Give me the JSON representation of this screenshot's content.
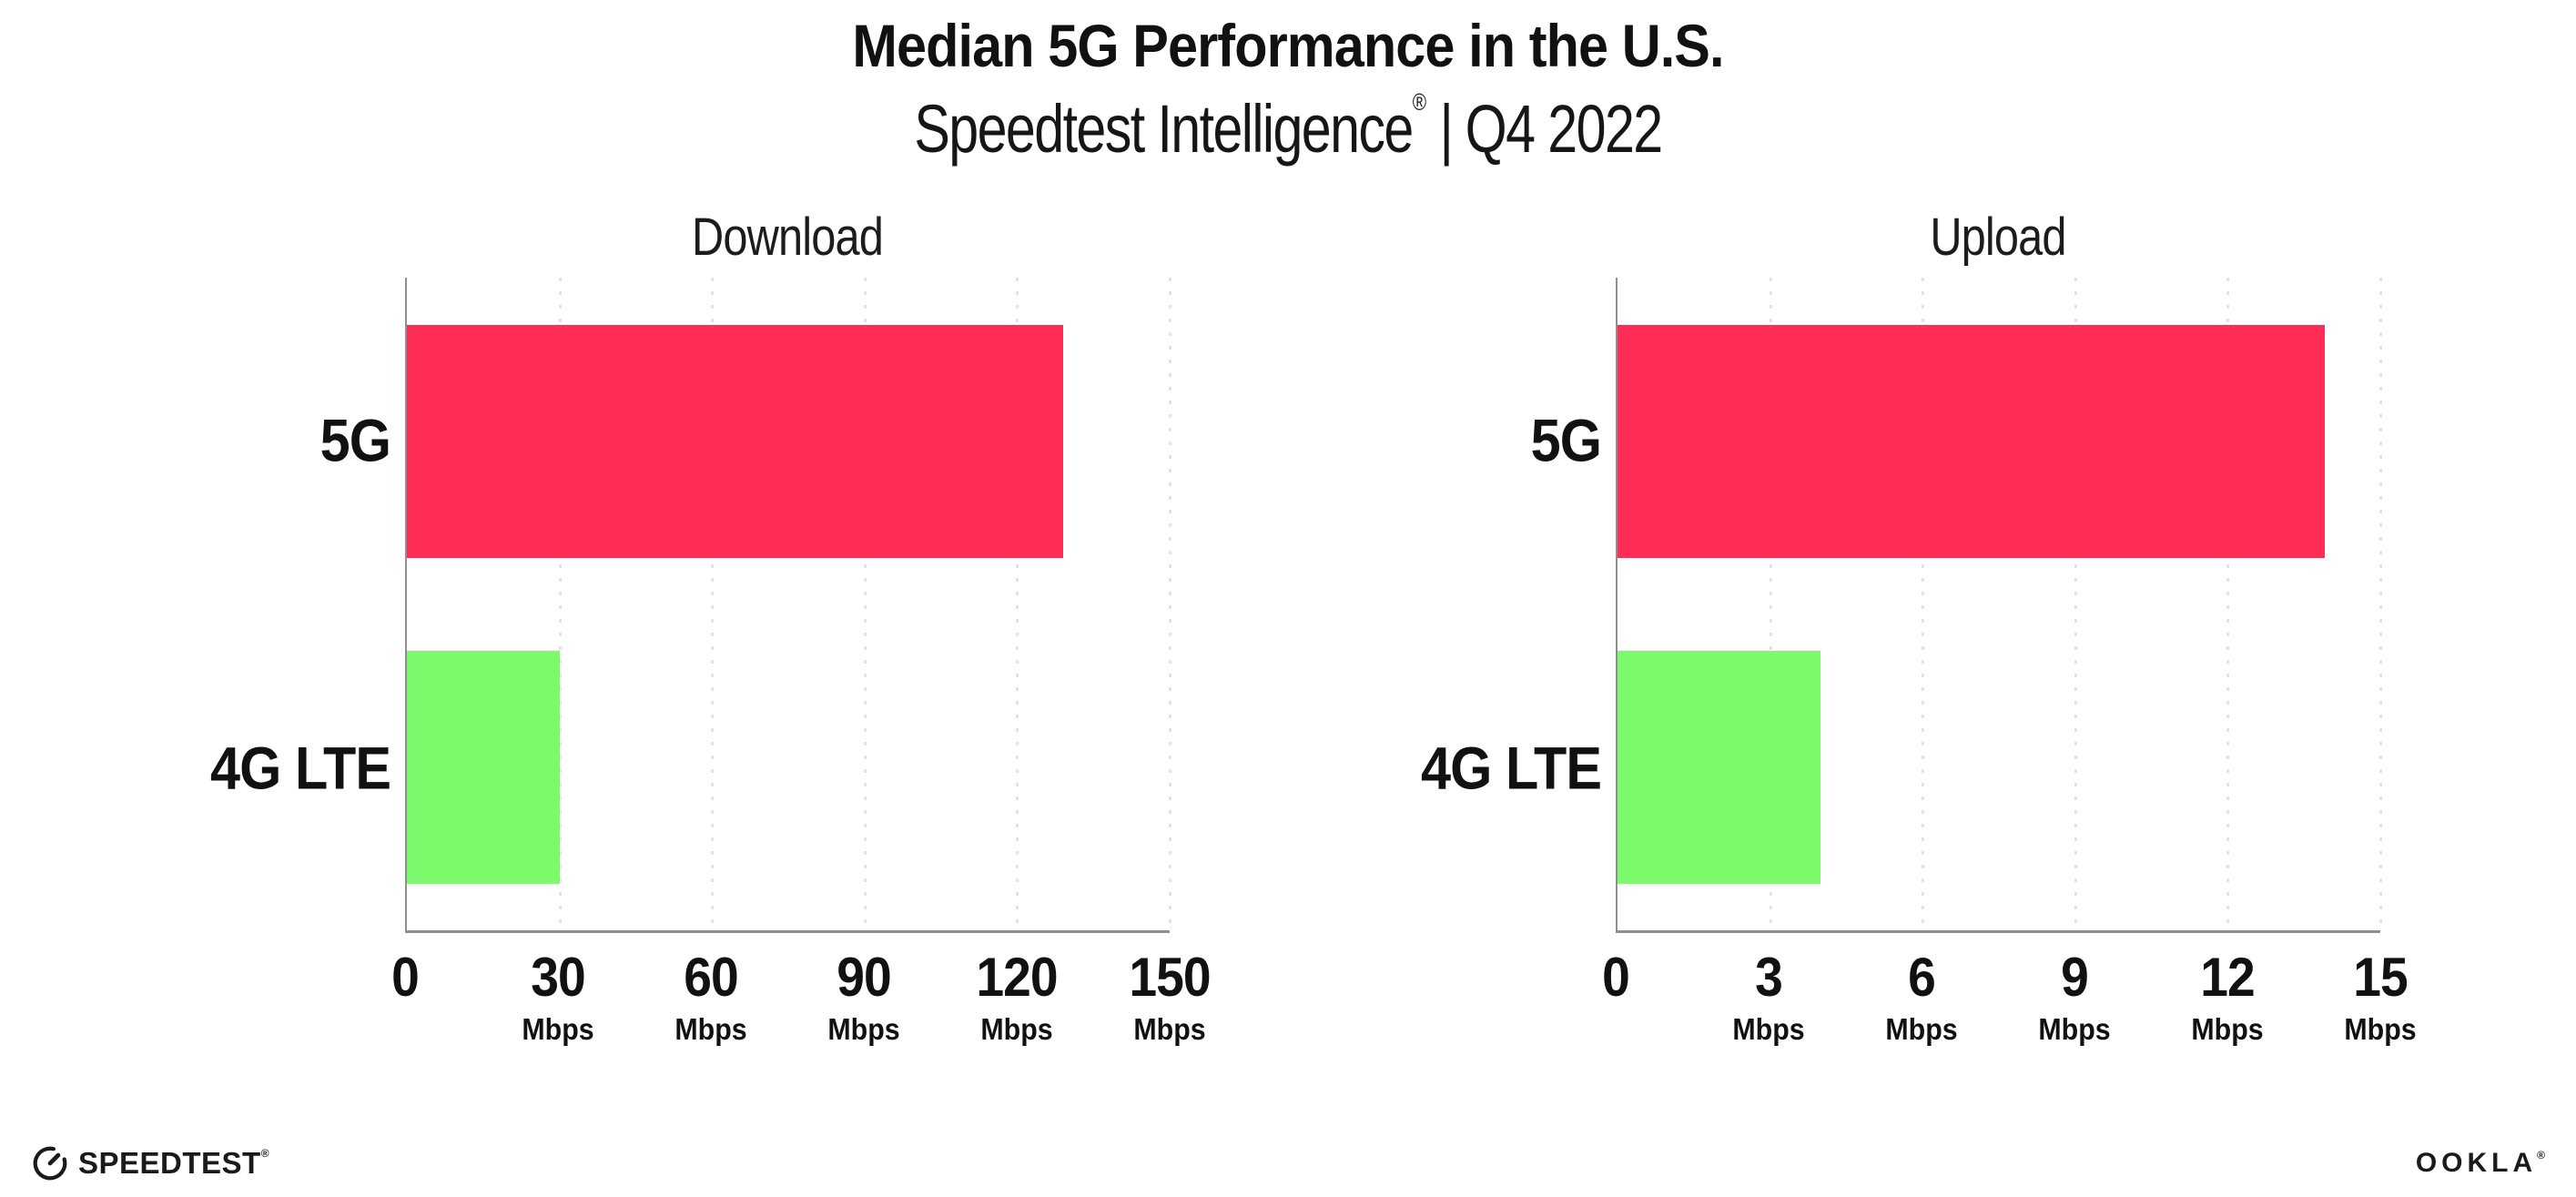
{
  "header": {
    "title": "Median 5G Performance in the U.S.",
    "subtitle": {
      "brand": "Speedtest Intelligence",
      "registered": "®",
      "separator": "|",
      "period": "Q4 2022"
    }
  },
  "chart_data": [
    {
      "type": "bar",
      "orientation": "horizontal",
      "title": "Download",
      "categories": [
        "5G",
        "4G LTE"
      ],
      "values": [
        129,
        30
      ],
      "unit": "Mbps",
      "xlim": [
        0,
        150
      ],
      "xticks": [
        0,
        30,
        60,
        90,
        120,
        150
      ],
      "bar_colors": [
        "#ff2d55",
        "#7dfa6c"
      ],
      "grid": "dotted-vertical-at-ticks",
      "legend": "none"
    },
    {
      "type": "bar",
      "orientation": "horizontal",
      "title": "Upload",
      "categories": [
        "5G",
        "4G LTE"
      ],
      "values": [
        13.9,
        4
      ],
      "unit": "Mbps",
      "xlim": [
        0,
        15
      ],
      "xticks": [
        0,
        3,
        6,
        9,
        12,
        15
      ],
      "bar_colors": [
        "#ff2d55",
        "#7dfa6c"
      ],
      "grid": "dotted-vertical-at-ticks",
      "legend": "none"
    }
  ],
  "footer": {
    "speedtest_label": "SPEEDTEST",
    "speedtest_mark": "®",
    "ookla_label": "OOKLA",
    "ookla_mark": "®"
  },
  "colors": {
    "bar_5g": "#ff2d55",
    "bar_4g_lte": "#7dfa6c",
    "axis": "#8f8f93",
    "grid_dots": "#e1e2ee",
    "text": "#111111",
    "background": "#ffffff"
  }
}
